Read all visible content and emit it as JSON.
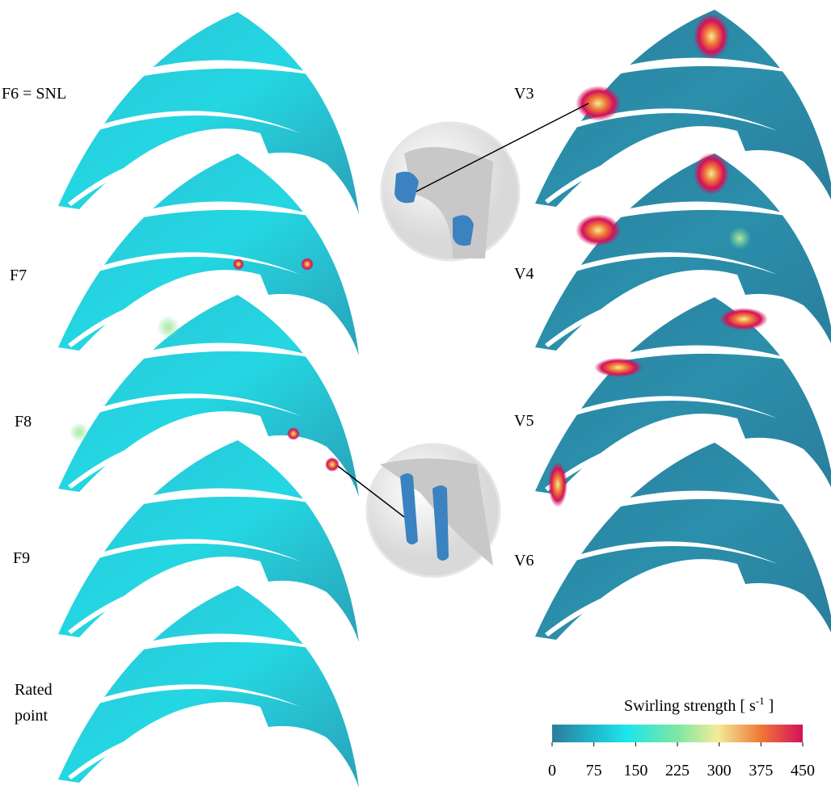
{
  "panels_left": [
    "F6 = SNL",
    "F7",
    "F8",
    "F9",
    "Rated",
    "point"
  ],
  "panels_right": [
    "V3",
    "V4",
    "V5",
    "V6"
  ],
  "colorbar": {
    "title": "Swirling strength [ s",
    "title_superscript": "-1",
    "title_end": "]",
    "ticks": [
      0,
      75,
      150,
      225,
      300,
      375,
      450
    ]
  }
}
